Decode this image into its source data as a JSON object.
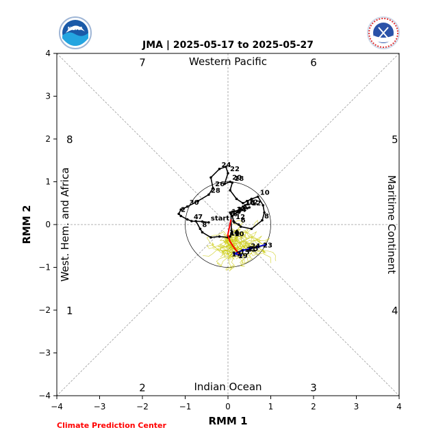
{
  "chart_data": {
    "type": "line",
    "title": "JMA | 2025-05-17 to 2025-05-27",
    "xlabel": "RMM 1",
    "ylabel": "RMM 2",
    "xlim": [
      -4,
      4
    ],
    "ylim": [
      -4,
      4
    ],
    "ticks": [
      "-4",
      "-3",
      "-2",
      "-1",
      "0",
      "1",
      "2",
      "3",
      "4"
    ],
    "grid": false,
    "unit_circle_radius": 1,
    "phases": [
      {
        "label": "1",
        "x": -3.7,
        "y": -2.0
      },
      {
        "label": "2",
        "x": -2.0,
        "y": -3.8
      },
      {
        "label": "3",
        "x": 2.0,
        "y": -3.8
      },
      {
        "label": "4",
        "x": 3.9,
        "y": -2.0
      },
      {
        "label": "5",
        "x": 3.9,
        "y": 2.0
      },
      {
        "label": "6",
        "x": 2.0,
        "y": 3.8
      },
      {
        "label": "7",
        "x": -2.0,
        "y": 3.8
      },
      {
        "label": "8",
        "x": -3.7,
        "y": 2.0
      }
    ],
    "regions": {
      "top": "Western Pacific",
      "bottom": "Indian Ocean",
      "left": "West. Hem. and Africa",
      "right": "Maritime Continent"
    },
    "observed_track": [
      {
        "x": -0.45,
        "y": 0.05,
        "label": "start"
      },
      {
        "x": -0.6,
        "y": 0.07
      },
      {
        "x": -0.85,
        "y": 0.08,
        "label": "4"
      },
      {
        "x": -0.95,
        "y": 0.12
      },
      {
        "x": -1.1,
        "y": 0.2
      },
      {
        "x": -1.15,
        "y": 0.25,
        "label": "2"
      },
      {
        "x": -1.1,
        "y": 0.35
      },
      {
        "x": -0.95,
        "y": 0.42,
        "label": "30"
      },
      {
        "x": -0.7,
        "y": 0.55
      },
      {
        "x": -0.45,
        "y": 0.7,
        "label": "28"
      },
      {
        "x": -0.35,
        "y": 0.85,
        "label": "26"
      },
      {
        "x": -0.4,
        "y": 1.1
      },
      {
        "x": -0.2,
        "y": 1.3,
        "label": "24"
      },
      {
        "x": -0.05,
        "y": 1.35
      },
      {
        "x": 0.0,
        "y": 1.2,
        "label": "22"
      },
      {
        "x": -0.08,
        "y": 0.95
      },
      {
        "x": 0.05,
        "y": 1.0,
        "label": "20"
      },
      {
        "x": 0.1,
        "y": 0.98,
        "label": "18"
      },
      {
        "x": 0.05,
        "y": 0.8
      },
      {
        "x": 0.2,
        "y": 0.6
      },
      {
        "x": 0.35,
        "y": 0.5
      },
      {
        "x": 0.55,
        "y": 0.6
      },
      {
        "x": 0.7,
        "y": 0.65,
        "label": "10"
      },
      {
        "x": 0.82,
        "y": 0.45
      },
      {
        "x": 0.85,
        "y": 0.28
      },
      {
        "x": 0.8,
        "y": 0.1,
        "label": "8"
      },
      {
        "x": 0.55,
        "y": -0.1
      },
      {
        "x": 0.3,
        "y": -0.05
      },
      {
        "x": 0.25,
        "y": 0.0,
        "label": "6"
      },
      {
        "x": 0.15,
        "y": 0.05
      },
      {
        "x": 0.13,
        "y": 0.08,
        "label": "12"
      },
      {
        "x": 0.1,
        "y": 0.2
      },
      {
        "x": 0.15,
        "y": 0.25,
        "label": "14"
      },
      {
        "x": 0.25,
        "y": 0.3
      },
      {
        "x": 0.3,
        "y": 0.38
      },
      {
        "x": 0.35,
        "y": 0.42,
        "label": "16"
      },
      {
        "x": 0.4,
        "y": 0.45
      },
      {
        "x": 0.45,
        "y": 0.38
      },
      {
        "x": 0.5,
        "y": 0.4,
        "label": "12"
      },
      {
        "x": 0.3,
        "y": 0.35
      },
      {
        "x": 0.1,
        "y": 0.3
      },
      {
        "x": 0.05,
        "y": 0.28
      },
      {
        "x": 0.07,
        "y": 0.25
      },
      {
        "x": 0.08,
        "y": -0.2
      },
      {
        "x": 0.05,
        "y": -0.28
      },
      {
        "x": 0.0,
        "y": -0.3,
        "label": "10"
      },
      {
        "x": -0.2,
        "y": -0.28
      },
      {
        "x": -0.4,
        "y": -0.3
      },
      {
        "x": -0.6,
        "y": -0.18
      },
      {
        "x": -0.65,
        "y": -0.1,
        "label": "8"
      },
      {
        "x": -0.75,
        "y": 0.08,
        "label": "7"
      }
    ],
    "observed_final_segment": [
      {
        "x": -0.01,
        "y": -0.27
      },
      {
        "x": 0.07,
        "y": 0.12
      }
    ],
    "forecast_red": [
      {
        "x": 0.0,
        "y": -0.25
      },
      {
        "x": 0.05,
        "y": -0.4
      },
      {
        "x": 0.15,
        "y": -0.55
      },
      {
        "x": 0.25,
        "y": -0.68
      },
      {
        "x": 0.3,
        "y": -0.75
      }
    ],
    "forecast_blue": [
      {
        "x": 0.3,
        "y": -0.72,
        "label": "19"
      },
      {
        "x": 0.15,
        "y": -0.68,
        "label": "17"
      },
      {
        "x": 0.35,
        "y": -0.6
      },
      {
        "x": 0.5,
        "y": -0.57,
        "label": "21"
      },
      {
        "x": 0.55,
        "y": -0.55,
        "label": "25"
      },
      {
        "x": 0.7,
        "y": -0.52
      },
      {
        "x": 0.88,
        "y": -0.47,
        "label": "23"
      }
    ],
    "labels_extra": [
      {
        "x": 0.05,
        "y": 0.3,
        "label": "16"
      },
      {
        "x": 0.18,
        "y": 0.35,
        "label": "14"
      },
      {
        "x": 0.38,
        "y": 0.5,
        "label": "14"
      },
      {
        "x": 0.45,
        "y": 0.52,
        "label": "12"
      },
      {
        "x": 0.08,
        "y": 0.25,
        "label": "8"
      },
      {
        "x": 0.12,
        "y": -0.22,
        "label": "10"
      },
      {
        "x": 0.0,
        "y": -0.18,
        "label": "14"
      },
      {
        "x": 0.5,
        "y": -0.5,
        "label": "24"
      },
      {
        "x": 0.25,
        "y": -0.65,
        "label": "15"
      }
    ],
    "ensemble_color": "#c8c800",
    "track_color": "#000000",
    "forecast_red_color": "#ff0000",
    "forecast_blue_color": "#0000cc"
  },
  "footer": {
    "credit": "Climate Prediction Center",
    "credit_color": "#ff0000"
  },
  "logos": {
    "left": "NOAA",
    "right": "NATIONAL WEATHER SERVICE"
  }
}
